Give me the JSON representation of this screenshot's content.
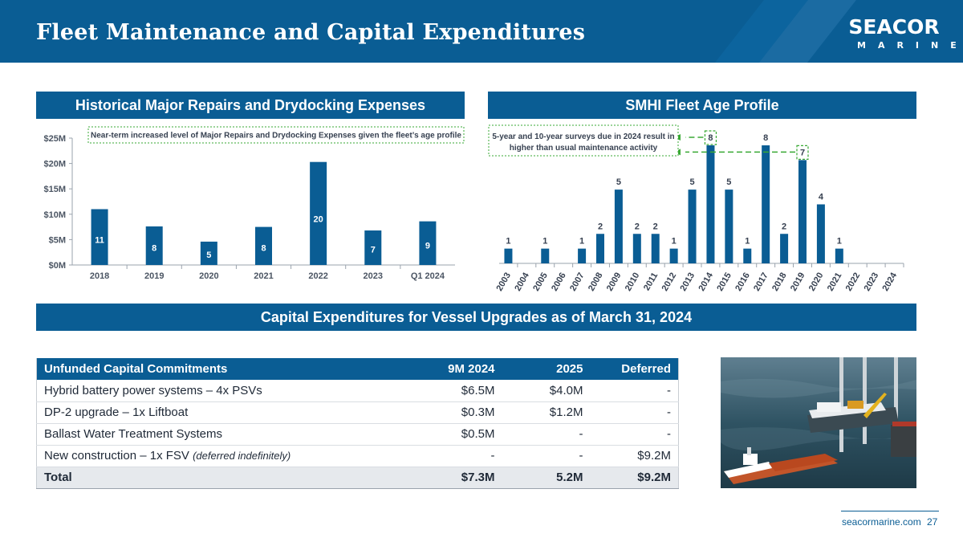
{
  "header": {
    "title": "Fleet Maintenance and Capital Expenditures",
    "logo_top": "SEACOR",
    "logo_bottom": "MARINE"
  },
  "sections": {
    "repairs_title": "Historical Major Repairs and Drydocking Expenses",
    "fleet_age_title": "SMHI Fleet Age Profile",
    "capex_title": "Capital Expenditures for Vessel Upgrades as of March 31, 2024"
  },
  "colors": {
    "brand_blue": "#0a5d94",
    "bar_blue": "#0a5d94",
    "annotation_green": "#3aa935"
  },
  "chart_data": [
    {
      "type": "bar",
      "categories": [
        "2018",
        "2019",
        "2020",
        "2021",
        "2022",
        "2023",
        "Q1 2024"
      ],
      "values": [
        11,
        7.6,
        4.6,
        7.5,
        20.3,
        6.8,
        8.6
      ],
      "data_labels": [
        "11",
        "8",
        "5",
        "8",
        "20",
        "7",
        "9"
      ],
      "ylim": [
        0,
        25
      ],
      "yticks": [
        "$0M",
        "$5M",
        "$10M",
        "$15M",
        "$20M",
        "$25M"
      ],
      "annotation": "Near-term increased level of Major Repairs and Drydocking Expenses given the fleet’s age profile",
      "grid": false
    },
    {
      "type": "bar",
      "categories": [
        "2003",
        "2004",
        "2005",
        "2006",
        "2007",
        "2008",
        "2009",
        "2010",
        "2011",
        "2012",
        "2013",
        "2014",
        "2015",
        "2016",
        "2017",
        "2018",
        "2019",
        "2020",
        "2021",
        "2022",
        "2023",
        "2024"
      ],
      "values": [
        1,
        0,
        1,
        0,
        1,
        2,
        5,
        2,
        2,
        1,
        5,
        8,
        5,
        1,
        8,
        2,
        7,
        4,
        1,
        0,
        0,
        0
      ],
      "data_labels": [
        "1",
        "",
        "1",
        "",
        "1",
        "2",
        "5",
        "2",
        "2",
        "1",
        "5",
        "8",
        "5",
        "1",
        "8",
        "2",
        "7",
        "4",
        "1",
        "",
        "",
        ""
      ],
      "ylim": [
        0,
        8
      ],
      "annotation": "5-year and 10-year surveys due in 2024 result in higher than usual maintenance activity",
      "highlighted": [
        "2014",
        "2019"
      ],
      "grid": false
    }
  ],
  "capex_table": {
    "headers": [
      "Unfunded Capital Commitments",
      "9M 2024",
      "2025",
      "Deferred"
    ],
    "rows": [
      {
        "label": "Hybrid battery power systems – 4x PSVs",
        "note": "",
        "c1": "$6.5M",
        "c2": "$4.0M",
        "c3": "-"
      },
      {
        "label": "DP-2 upgrade – 1x Liftboat",
        "note": "",
        "c1": "$0.3M",
        "c2": "$1.2M",
        "c3": "-"
      },
      {
        "label": "Ballast Water Treatment Systems",
        "note": "",
        "c1": "$0.5M",
        "c2": "-",
        "c3": "-"
      },
      {
        "label": "New construction – 1x FSV ",
        "note": "(deferred indefinitely)",
        "c1": "-",
        "c2": "-",
        "c3": "$9.2M"
      }
    ],
    "total": {
      "label": "Total",
      "c1": "$7.3M",
      "c2": "5.2M",
      "c3": "$9.2M"
    }
  },
  "footer": {
    "site": "seacormarine.com",
    "page": "27"
  }
}
